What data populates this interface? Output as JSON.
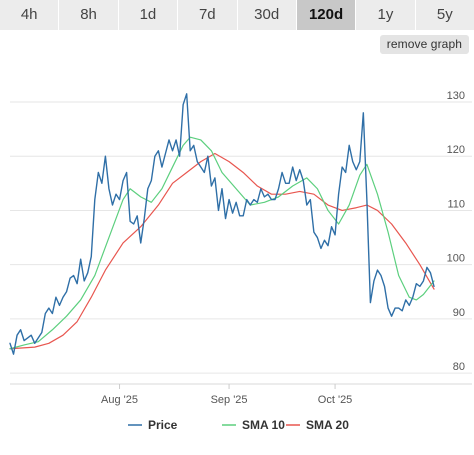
{
  "range_buttons": [
    {
      "label": "4h",
      "active": false
    },
    {
      "label": "8h",
      "active": false
    },
    {
      "label": "1d",
      "active": false
    },
    {
      "label": "7d",
      "active": false
    },
    {
      "label": "30d",
      "active": false
    },
    {
      "label": "120d",
      "active": true
    },
    {
      "label": "1y",
      "active": false
    },
    {
      "label": "5y",
      "active": false
    }
  ],
  "remove_graph_label": "remove graph",
  "chart_data": {
    "type": "line",
    "title": "",
    "xlabel": "",
    "ylabel": "",
    "x_range": [
      "2025-07-01",
      "2025-10-29"
    ],
    "ylim": [
      78,
      137
    ],
    "y_ticks": [
      80,
      90,
      100,
      110,
      120,
      130
    ],
    "x_ticks": [
      {
        "date": "2025-08-01",
        "label": "Aug '25"
      },
      {
        "date": "2025-09-01",
        "label": "Sep '25"
      },
      {
        "date": "2025-10-01",
        "label": "Oct '25"
      }
    ],
    "grid": true,
    "legend_position": "bottom",
    "series": [
      {
        "name": "Price",
        "color": "#2f6fa7",
        "points": [
          [
            "2025-07-01",
            85.5
          ],
          [
            "2025-07-02",
            83.5
          ],
          [
            "2025-07-03",
            87
          ],
          [
            "2025-07-04",
            88
          ],
          [
            "2025-07-05",
            86
          ],
          [
            "2025-07-06",
            86.5
          ],
          [
            "2025-07-07",
            87
          ],
          [
            "2025-07-08",
            85.5
          ],
          [
            "2025-07-09",
            86.5
          ],
          [
            "2025-07-10",
            87.5
          ],
          [
            "2025-07-11",
            91
          ],
          [
            "2025-07-12",
            92
          ],
          [
            "2025-07-13",
            91
          ],
          [
            "2025-07-14",
            94
          ],
          [
            "2025-07-15",
            92.5
          ],
          [
            "2025-07-16",
            94
          ],
          [
            "2025-07-17",
            95
          ],
          [
            "2025-07-18",
            97.5
          ],
          [
            "2025-07-19",
            98
          ],
          [
            "2025-07-20",
            96.5
          ],
          [
            "2025-07-21",
            101
          ],
          [
            "2025-07-22",
            97
          ],
          [
            "2025-07-23",
            98.5
          ],
          [
            "2025-07-24",
            101.5
          ],
          [
            "2025-07-25",
            112
          ],
          [
            "2025-07-26",
            117
          ],
          [
            "2025-07-27",
            115
          ],
          [
            "2025-07-28",
            120
          ],
          [
            "2025-07-29",
            114
          ],
          [
            "2025-07-30",
            111
          ],
          [
            "2025-07-31",
            113
          ],
          [
            "2025-08-01",
            112
          ],
          [
            "2025-08-02",
            115.5
          ],
          [
            "2025-08-03",
            117
          ],
          [
            "2025-08-04",
            108
          ],
          [
            "2025-08-05",
            107.5
          ],
          [
            "2025-08-06",
            109
          ],
          [
            "2025-08-07",
            104
          ],
          [
            "2025-08-08",
            108.5
          ],
          [
            "2025-08-09",
            114
          ],
          [
            "2025-08-10",
            115.5
          ],
          [
            "2025-08-11",
            120
          ],
          [
            "2025-08-12",
            121
          ],
          [
            "2025-08-13",
            118
          ],
          [
            "2025-08-14",
            120.5
          ],
          [
            "2025-08-15",
            123
          ],
          [
            "2025-08-16",
            121
          ],
          [
            "2025-08-17",
            123
          ],
          [
            "2025-08-18",
            120
          ],
          [
            "2025-08-19",
            129.5
          ],
          [
            "2025-08-20",
            131.5
          ],
          [
            "2025-08-21",
            121
          ],
          [
            "2025-08-22",
            122
          ],
          [
            "2025-08-23",
            119
          ],
          [
            "2025-08-24",
            118
          ],
          [
            "2025-08-25",
            117
          ],
          [
            "2025-08-26",
            120
          ],
          [
            "2025-08-27",
            114.5
          ],
          [
            "2025-08-28",
            116
          ],
          [
            "2025-08-29",
            110
          ],
          [
            "2025-08-30",
            114
          ],
          [
            "2025-08-31",
            108.5
          ],
          [
            "2025-09-01",
            112
          ],
          [
            "2025-09-02",
            109.5
          ],
          [
            "2025-09-03",
            111.5
          ],
          [
            "2025-09-04",
            109
          ],
          [
            "2025-09-05",
            109
          ],
          [
            "2025-09-06",
            112
          ],
          [
            "2025-09-07",
            111
          ],
          [
            "2025-09-08",
            112
          ],
          [
            "2025-09-09",
            111.5
          ],
          [
            "2025-09-10",
            114
          ],
          [
            "2025-09-11",
            112.5
          ],
          [
            "2025-09-12",
            113
          ],
          [
            "2025-09-13",
            112
          ],
          [
            "2025-09-14",
            112
          ],
          [
            "2025-09-15",
            114
          ],
          [
            "2025-09-16",
            117
          ],
          [
            "2025-09-17",
            115
          ],
          [
            "2025-09-18",
            115
          ],
          [
            "2025-09-19",
            118
          ],
          [
            "2025-09-20",
            115.5
          ],
          [
            "2025-09-21",
            117.5
          ],
          [
            "2025-09-22",
            115.5
          ],
          [
            "2025-09-23",
            111
          ],
          [
            "2025-09-24",
            112
          ],
          [
            "2025-09-25",
            106
          ],
          [
            "2025-09-26",
            105
          ],
          [
            "2025-09-27",
            103
          ],
          [
            "2025-09-28",
            104.5
          ],
          [
            "2025-09-29",
            103.5
          ],
          [
            "2025-09-30",
            107
          ],
          [
            "2025-10-01",
            105.5
          ],
          [
            "2025-10-02",
            113
          ],
          [
            "2025-10-03",
            118
          ],
          [
            "2025-10-04",
            117
          ],
          [
            "2025-10-05",
            122
          ],
          [
            "2025-10-06",
            119
          ],
          [
            "2025-10-07",
            117.5
          ],
          [
            "2025-10-08",
            119
          ],
          [
            "2025-10-09",
            128
          ],
          [
            "2025-10-10",
            112
          ],
          [
            "2025-10-11",
            93
          ],
          [
            "2025-10-12",
            97
          ],
          [
            "2025-10-13",
            99
          ],
          [
            "2025-10-14",
            98
          ],
          [
            "2025-10-15",
            96
          ],
          [
            "2025-10-16",
            92
          ],
          [
            "2025-10-17",
            90.5
          ],
          [
            "2025-10-18",
            92
          ],
          [
            "2025-10-19",
            92
          ],
          [
            "2025-10-20",
            91.5
          ],
          [
            "2025-10-21",
            93.5
          ],
          [
            "2025-10-22",
            92.5
          ],
          [
            "2025-10-23",
            94
          ],
          [
            "2025-10-24",
            96.5
          ],
          [
            "2025-10-25",
            96
          ],
          [
            "2025-10-26",
            97
          ],
          [
            "2025-10-27",
            99.5
          ],
          [
            "2025-10-28",
            98.5
          ],
          [
            "2025-10-29",
            96
          ]
        ]
      },
      {
        "name": "SMA 10",
        "color": "#5ccf7e",
        "points": [
          [
            "2025-07-01",
            84.5
          ],
          [
            "2025-07-05",
            85.2
          ],
          [
            "2025-07-09",
            85.8
          ],
          [
            "2025-07-13",
            88
          ],
          [
            "2025-07-17",
            90.5
          ],
          [
            "2025-07-21",
            93.5
          ],
          [
            "2025-07-25",
            98
          ],
          [
            "2025-07-29",
            105
          ],
          [
            "2025-08-02",
            112
          ],
          [
            "2025-08-04",
            114
          ],
          [
            "2025-08-07",
            112.5
          ],
          [
            "2025-08-10",
            111.5
          ],
          [
            "2025-08-13",
            114
          ],
          [
            "2025-08-16",
            118
          ],
          [
            "2025-08-19",
            122
          ],
          [
            "2025-08-21",
            123.5
          ],
          [
            "2025-08-24",
            123
          ],
          [
            "2025-08-27",
            121
          ],
          [
            "2025-08-30",
            117
          ],
          [
            "2025-09-03",
            114
          ],
          [
            "2025-09-07",
            111
          ],
          [
            "2025-09-11",
            111.5
          ],
          [
            "2025-09-15",
            112.5
          ],
          [
            "2025-09-19",
            114.5
          ],
          [
            "2025-09-23",
            116
          ],
          [
            "2025-09-26",
            114
          ],
          [
            "2025-09-29",
            110
          ],
          [
            "2025-10-02",
            107.5
          ],
          [
            "2025-10-05",
            111
          ],
          [
            "2025-10-08",
            116.5
          ],
          [
            "2025-10-10",
            118.5
          ],
          [
            "2025-10-13",
            113
          ],
          [
            "2025-10-16",
            106
          ],
          [
            "2025-10-19",
            98
          ],
          [
            "2025-10-22",
            94
          ],
          [
            "2025-10-24",
            93.5
          ],
          [
            "2025-10-26",
            94.5
          ],
          [
            "2025-10-29",
            97
          ]
        ]
      },
      {
        "name": "SMA 20",
        "color": "#e8564f",
        "points": [
          [
            "2025-07-01",
            84.5
          ],
          [
            "2025-07-08",
            84.8
          ],
          [
            "2025-07-12",
            85.5
          ],
          [
            "2025-07-16",
            87
          ],
          [
            "2025-07-20",
            89.5
          ],
          [
            "2025-07-24",
            94
          ],
          [
            "2025-07-28",
            99
          ],
          [
            "2025-08-02",
            104
          ],
          [
            "2025-08-07",
            107
          ],
          [
            "2025-08-12",
            111
          ],
          [
            "2025-08-16",
            115
          ],
          [
            "2025-08-20",
            117
          ],
          [
            "2025-08-24",
            119
          ],
          [
            "2025-08-28",
            120.5
          ],
          [
            "2025-09-01",
            119
          ],
          [
            "2025-09-05",
            117
          ],
          [
            "2025-09-09",
            114.5
          ],
          [
            "2025-09-13",
            113
          ],
          [
            "2025-09-17",
            113
          ],
          [
            "2025-09-21",
            113.5
          ],
          [
            "2025-09-25",
            113
          ],
          [
            "2025-09-29",
            111
          ],
          [
            "2025-10-03",
            110
          ],
          [
            "2025-10-07",
            110.5
          ],
          [
            "2025-10-10",
            111
          ],
          [
            "2025-10-13",
            110
          ],
          [
            "2025-10-17",
            107.5
          ],
          [
            "2025-10-21",
            104
          ],
          [
            "2025-10-25",
            100
          ],
          [
            "2025-10-29",
            95.5
          ]
        ]
      }
    ]
  }
}
